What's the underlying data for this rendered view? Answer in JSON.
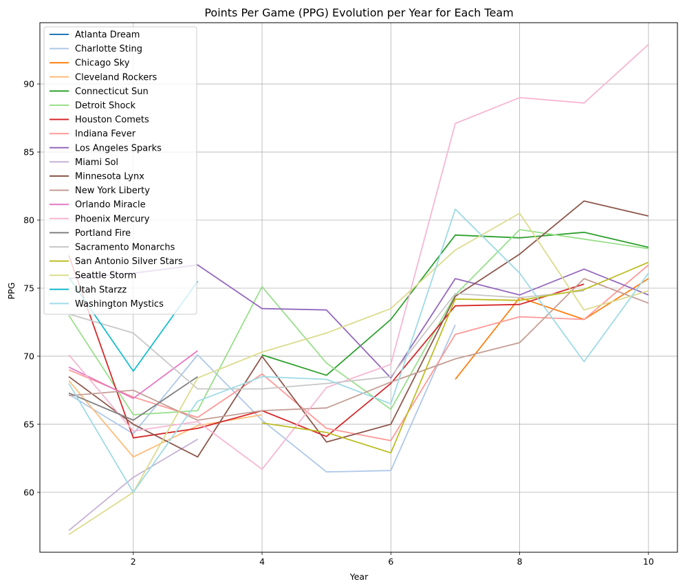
{
  "chart_data": {
    "type": "line",
    "title": "Points Per Game (PPG) Evolution per Year for Each Team",
    "xlabel": "Year",
    "ylabel": "PPG",
    "xlim": [
      0.55,
      10.45
    ],
    "ylim": [
      55.6,
      94.5
    ],
    "xticks": [
      2,
      4,
      6,
      8,
      10
    ],
    "yticks": [
      60,
      65,
      70,
      75,
      80,
      85,
      90
    ],
    "grid": true,
    "legend_position": "upper-left",
    "series": [
      {
        "name": "Atlanta Dream",
        "color": "#1f77b4",
        "x": [],
        "y": []
      },
      {
        "name": "Charlotte Sting",
        "color": "#aec7e8",
        "x": [
          1,
          2,
          3,
          4,
          5,
          6,
          7
        ],
        "y": [
          67.2,
          64.3,
          70.1,
          65.3,
          61.5,
          61.6,
          72.3
        ]
      },
      {
        "name": "Chicago Sky",
        "color": "#ff7f0e",
        "x": [
          7,
          8,
          9,
          10
        ],
        "y": [
          68.3,
          74.3,
          72.7,
          75.7
        ]
      },
      {
        "name": "Cleveland Rockers",
        "color": "#ffbb78",
        "x": [
          1,
          2,
          3,
          4
        ],
        "y": [
          68.2,
          62.6,
          64.9,
          65.7
        ]
      },
      {
        "name": "Connecticut Sun",
        "color": "#2ca02c",
        "x": [
          4,
          5,
          6,
          7,
          8,
          9,
          10
        ],
        "y": [
          70.1,
          68.6,
          72.7,
          78.9,
          78.7,
          79.1,
          78.0
        ]
      },
      {
        "name": "Detroit Shock",
        "color": "#98df8a",
        "x": [
          1,
          2,
          3,
          4,
          5,
          6,
          7,
          8,
          9,
          10
        ],
        "y": [
          73.0,
          65.7,
          66.0,
          75.1,
          69.5,
          66.1,
          74.5,
          79.3,
          78.6,
          77.9
        ]
      },
      {
        "name": "Houston Comets",
        "color": "#d62728",
        "x": [
          1,
          2,
          3,
          4,
          5,
          6,
          7,
          8,
          9
        ],
        "y": [
          77.4,
          64.0,
          64.7,
          66.0,
          64.1,
          68.0,
          73.7,
          73.8,
          75.3
        ]
      },
      {
        "name": "Indiana Fever",
        "color": "#ff9896",
        "x": [
          1,
          2,
          3,
          4,
          5,
          6,
          7,
          8,
          9,
          10
        ],
        "y": [
          69.0,
          67.0,
          65.5,
          68.7,
          64.7,
          63.8,
          71.6,
          72.9,
          72.7,
          76.7
        ]
      },
      {
        "name": "Los Angeles Sparks",
        "color": "#9467bd",
        "x": [
          1,
          2,
          3,
          4,
          5,
          6,
          7,
          8,
          9,
          10
        ],
        "y": [
          75.7,
          76.1,
          76.7,
          73.5,
          73.4,
          68.4,
          75.7,
          74.5,
          76.4,
          74.5
        ]
      },
      {
        "name": "Miami Sol",
        "color": "#c5b0d5",
        "x": [
          1,
          2,
          3
        ],
        "y": [
          57.2,
          61.1,
          63.9
        ]
      },
      {
        "name": "Minnesota Lynx",
        "color": "#8c564b",
        "x": [
          1,
          2,
          3,
          4,
          5,
          6,
          7,
          8,
          9,
          10
        ],
        "y": [
          68.5,
          65.0,
          62.6,
          70.0,
          63.7,
          65.0,
          74.4,
          77.5,
          81.4,
          80.3
        ]
      },
      {
        "name": "New York Liberty",
        "color": "#c49c94",
        "x": [
          1,
          2,
          3,
          4,
          5,
          6,
          7,
          8,
          9,
          10
        ],
        "y": [
          67.1,
          67.5,
          65.3,
          66.0,
          66.2,
          68.1,
          69.8,
          71.0,
          75.7,
          73.9
        ]
      },
      {
        "name": "Orlando Miracle",
        "color": "#e377c2",
        "x": [
          1,
          2,
          3
        ],
        "y": [
          69.2,
          66.9,
          70.4
        ]
      },
      {
        "name": "Phoenix Mercury",
        "color": "#f7b6d2",
        "x": [
          1,
          2,
          3,
          4,
          5,
          6,
          7,
          8,
          9,
          10
        ],
        "y": [
          70.1,
          64.5,
          65.2,
          61.7,
          67.7,
          69.4,
          87.1,
          89.0,
          88.6,
          92.9
        ]
      },
      {
        "name": "Portland Fire",
        "color": "#7f7f7f",
        "x": [
          1,
          2,
          3
        ],
        "y": [
          67.3,
          65.3,
          68.5
        ]
      },
      {
        "name": "Sacramento Monarchs",
        "color": "#c7c7c7",
        "x": [
          1,
          2,
          3,
          4,
          5,
          6,
          7,
          8,
          9
        ],
        "y": [
          73.1,
          71.7,
          67.6,
          67.6,
          68.0,
          68.5,
          74.6,
          74.3,
          74.8
        ]
      },
      {
        "name": "San Antonio Silver Stars",
        "color": "#bcbd22",
        "x": [
          4,
          5,
          6,
          7,
          8,
          9,
          10
        ],
        "y": [
          65.1,
          64.4,
          62.9,
          74.2,
          74.1,
          74.9,
          76.9
        ]
      },
      {
        "name": "Seattle Storm",
        "color": "#dbdb8d",
        "x": [
          1,
          2,
          3,
          4,
          5,
          6,
          7,
          8,
          9,
          10
        ],
        "y": [
          56.9,
          60.0,
          68.4,
          70.3,
          71.7,
          73.5,
          77.8,
          80.5,
          73.4,
          74.8
        ]
      },
      {
        "name": "Utah Starzz",
        "color": "#17becf",
        "x": [
          1,
          2,
          3
        ],
        "y": [
          75.8,
          68.9,
          75.5
        ]
      },
      {
        "name": "Washington Mystics",
        "color": "#9edae5",
        "x": [
          1,
          2,
          3,
          4,
          5,
          6,
          7,
          8,
          9,
          10
        ],
        "y": [
          68.0,
          60.0,
          66.7,
          68.5,
          68.3,
          66.5,
          80.8,
          76.1,
          69.6,
          76.1
        ]
      }
    ]
  }
}
